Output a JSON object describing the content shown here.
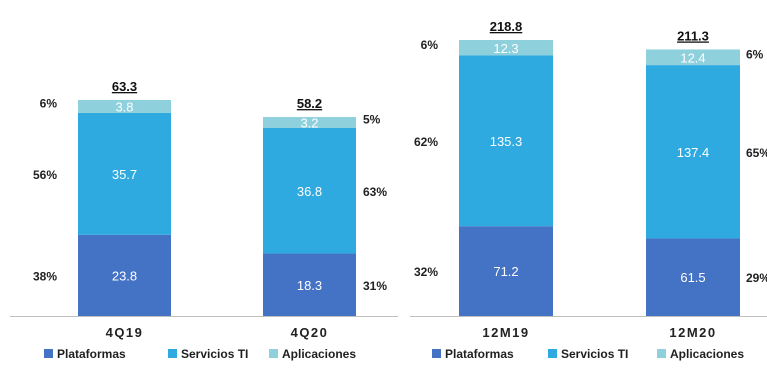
{
  "colors": {
    "Plataformas": "#4472c4",
    "Servicios TI": "#2eaae1",
    "Aplicaciones": "#8ed0dc"
  },
  "chart_data": [
    {
      "type": "bar",
      "stacked": true,
      "title": "",
      "categories": [
        "4Q19",
        "4Q20"
      ],
      "series": [
        {
          "name": "Plataformas",
          "values": [
            23.8,
            18.3
          ],
          "percent_labels": [
            "38%",
            "31%"
          ]
        },
        {
          "name": "Servicios TI",
          "values": [
            35.7,
            36.8
          ],
          "percent_labels": [
            "56%",
            "63%"
          ]
        },
        {
          "name": "Aplicaciones",
          "values": [
            3.8,
            3.2
          ],
          "percent_labels": [
            "6%",
            "5%"
          ]
        }
      ],
      "totals": [
        "63.3",
        "58.2"
      ],
      "legend": "bottom"
    },
    {
      "type": "bar",
      "stacked": true,
      "title": "",
      "categories": [
        "12M19",
        "12M20"
      ],
      "series": [
        {
          "name": "Plataformas",
          "values": [
            71.2,
            61.5
          ],
          "percent_labels": [
            "32%",
            "29%"
          ]
        },
        {
          "name": "Servicios TI",
          "values": [
            135.3,
            137.4
          ],
          "percent_labels": [
            "62%",
            "65%"
          ]
        },
        {
          "name": "Aplicaciones",
          "values": [
            12.3,
            12.4
          ],
          "percent_labels": [
            "6%",
            "6%"
          ]
        }
      ],
      "totals": [
        "218.8",
        "211.3"
      ],
      "legend": "bottom"
    }
  ]
}
